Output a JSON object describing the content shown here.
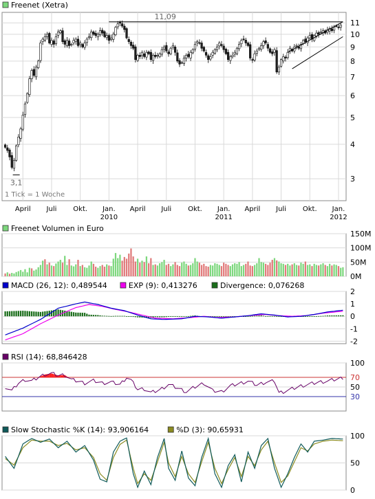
{
  "colors": {
    "background": "#ffffff",
    "plot_background": "#ffffff",
    "grid": "#d9d9d9",
    "border": "#888888",
    "candle_up": "#2e7d32",
    "candle_down": "#c62828",
    "volume_up": "#7dd77d",
    "volume_down": "#e07a7a",
    "macd": "#0000cc",
    "exp": "#ee00ee",
    "divergence": "#1b6e1b",
    "rsi": "#660066",
    "rsi_hi": "#cc3333",
    "rsi_lo": "#3333aa",
    "rsi_fill": "#ff2222",
    "stoch_k": "#0f5a5a",
    "stoch_d": "#8b8b20",
    "trendline": "#000000"
  },
  "chart_data": [
    {
      "id": "price",
      "type": "candlestick",
      "legend": [
        {
          "label": "Freenet (Xetra)",
          "color": "#7dd77d"
        }
      ],
      "y_scale": "log",
      "ylim": [
        2.5,
        12
      ],
      "yticks": [
        3,
        4,
        5,
        6,
        7,
        8,
        9,
        10,
        11
      ],
      "x_range": [
        0,
        153
      ],
      "note": "1 Tick = 1 Woche",
      "annotations": [
        {
          "text": "11,09",
          "x": 75,
          "value": 11.09
        },
        {
          "text": "3,1",
          "x": 5,
          "value": 3.1
        }
      ],
      "x_ticks": [
        {
          "label": "April",
          "x": 8
        },
        {
          "label": "Juli",
          "x": 21
        },
        {
          "label": "Okt.",
          "x": 34
        },
        {
          "label": "Jan.",
          "x": 47,
          "year": "2010"
        },
        {
          "label": "April",
          "x": 60
        },
        {
          "label": "Juli",
          "x": 73
        },
        {
          "label": "Okt.",
          "x": 86
        },
        {
          "label": "Jan.",
          "x": 99,
          "year": "2011"
        },
        {
          "label": "April",
          "x": 112
        },
        {
          "label": "Juli",
          "x": 125
        },
        {
          "label": "Okt.",
          "x": 138
        },
        {
          "label": "Jan.",
          "x": 151,
          "year": "2012"
        }
      ],
      "closes": [
        3.9,
        3.8,
        3.6,
        3.3,
        3.5,
        3.95,
        4.25,
        4.55,
        5.1,
        5.6,
        6.1,
        6.9,
        7.4,
        7.1,
        7.6,
        8.0,
        9.3,
        9.6,
        9.8,
        10.0,
        9.3,
        9.5,
        9.2,
        9.8,
        10.2,
        10.3,
        9.4,
        9.2,
        9.5,
        9.1,
        9.2,
        9.5,
        9.6,
        9.1,
        9.3,
        9.0,
        9.3,
        9.6,
        9.8,
        10.2,
        10.0,
        9.9,
        10.0,
        10.3,
        10.1,
        9.8,
        9.9,
        9.5,
        9.7,
        10.0,
        10.6,
        10.9,
        11.0,
        10.7,
        10.4,
        9.7,
        9.4,
        9.1,
        8.9,
        8.1,
        8.4,
        8.3,
        8.6,
        8.3,
        8.6,
        8.5,
        8.1,
        8.4,
        8.3,
        8.4,
        8.5,
        8.8,
        9.0,
        8.7,
        8.5,
        8.9,
        9.1,
        8.6,
        8.0,
        7.8,
        7.9,
        8.2,
        8.4,
        8.3,
        8.6,
        8.8,
        9.2,
        9.4,
        9.3,
        8.9,
        8.7,
        8.4,
        8.1,
        8.3,
        8.6,
        8.8,
        9.0,
        9.3,
        9.1,
        8.8,
        8.5,
        8.1,
        8.3,
        8.4,
        8.6,
        8.9,
        9.2,
        9.5,
        9.6,
        9.3,
        9.1,
        8.2,
        8.1,
        8.5,
        8.7,
        8.9,
        9.1,
        9.4,
        9.3,
        8.9,
        8.6,
        8.5,
        8.8,
        7.3,
        7.6,
        8.1,
        8.3,
        8.2,
        8.6,
        8.9,
        8.7,
        9.0,
        9.1,
        8.9,
        9.2,
        9.5,
        9.4,
        9.7,
        9.9,
        9.6,
        9.9,
        10.1,
        10.0,
        10.2,
        10.3,
        10.1,
        10.4,
        10.5,
        10.3,
        10.6,
        10.7,
        10.6,
        10.8
      ]
    },
    {
      "id": "volume",
      "type": "bar",
      "legend": [
        {
          "label": "Freenet Volumen in Euro",
          "color": "#7dd77d"
        }
      ],
      "ylim": [
        0,
        150
      ],
      "ytick_labels": [
        "0M",
        "50M",
        "100M",
        "150M"
      ],
      "yticks": [
        0,
        50,
        100,
        150
      ],
      "values": [
        10,
        14,
        9,
        12,
        10,
        15,
        18,
        22,
        16,
        25,
        14,
        30,
        28,
        20,
        24,
        32,
        40,
        55,
        60,
        42,
        48,
        38,
        36,
        45,
        52,
        58,
        48,
        72,
        40,
        60,
        38,
        35,
        42,
        58,
        36,
        40,
        32,
        30,
        38,
        52,
        44,
        34,
        30,
        36,
        40,
        34,
        42,
        38,
        36,
        62,
        82,
        64,
        76,
        55,
        68,
        62,
        80,
        98,
        70,
        52,
        62,
        48,
        55,
        50,
        70,
        46,
        64,
        40,
        42,
        38,
        46,
        50,
        58,
        40,
        44,
        36,
        42,
        50,
        40,
        36,
        48,
        52,
        44,
        38,
        40,
        46,
        64,
        52,
        48,
        40,
        44,
        36,
        34,
        40,
        38,
        46,
        44,
        40,
        36,
        48,
        44,
        40,
        36,
        42,
        46,
        44,
        50,
        36,
        40,
        44,
        52,
        38,
        36,
        40,
        46,
        64,
        50,
        48,
        44,
        40,
        48,
        58,
        64,
        56,
        52,
        46,
        44,
        40,
        44,
        38,
        42,
        46,
        40,
        38,
        48,
        44,
        52,
        40,
        42,
        36,
        44,
        40,
        38,
        42,
        46,
        40,
        36,
        44,
        38,
        42,
        40,
        36,
        30,
        32
      ],
      "down": [
        1,
        0,
        1,
        0,
        0,
        0,
        0,
        0,
        0,
        0,
        0,
        0,
        1,
        0,
        0,
        0,
        0,
        0,
        1,
        0,
        1,
        0,
        1,
        0,
        0,
        0,
        1,
        0,
        0,
        1,
        0,
        0,
        0,
        1,
        0,
        1,
        0,
        0,
        0,
        0,
        1,
        1,
        0,
        0,
        1,
        1,
        0,
        1,
        0,
        0,
        0,
        0,
        0,
        1,
        1,
        1,
        1,
        1,
        1,
        1,
        0,
        1,
        0,
        1,
        0,
        1,
        1,
        0,
        1,
        0,
        0,
        0,
        0,
        1,
        1,
        0,
        0,
        1,
        1,
        1,
        0,
        0,
        0,
        1,
        0,
        0,
        0,
        0,
        1,
        1,
        1,
        1,
        1,
        0,
        0,
        0,
        0,
        0,
        1,
        1,
        1,
        1,
        0,
        0,
        0,
        0,
        0,
        0,
        0,
        1,
        1,
        1,
        1,
        0,
        0,
        0,
        0,
        0,
        1,
        1,
        1,
        1,
        0,
        1,
        0,
        0,
        0,
        1,
        0,
        0,
        1,
        0,
        0,
        1,
        0,
        0,
        1,
        0,
        0,
        1,
        0,
        0,
        1,
        0,
        0,
        1,
        0,
        0,
        1,
        0,
        0,
        1,
        0,
        0
      ]
    },
    {
      "id": "macd",
      "type": "line",
      "legend": [
        {
          "label": "MACD (26, 12): 0,489544",
          "color": "#0000cc"
        },
        {
          "label": "EXP (9): 0,413276",
          "color": "#ee00ee"
        },
        {
          "label": "Divergence: 0,076268",
          "color": "#1b6e1b"
        }
      ],
      "ylim": [
        -2.2,
        2
      ],
      "yticks": [
        -2,
        -1,
        0,
        1,
        2
      ],
      "macd_keys": [
        [
          0,
          -1.5
        ],
        [
          8,
          -0.95
        ],
        [
          16,
          -0.25
        ],
        [
          24,
          0.65
        ],
        [
          32,
          1.0
        ],
        [
          36,
          1.15
        ],
        [
          42,
          0.95
        ],
        [
          48,
          0.65
        ],
        [
          54,
          0.45
        ],
        [
          60,
          0.1
        ],
        [
          66,
          -0.2
        ],
        [
          72,
          -0.25
        ],
        [
          80,
          -0.2
        ],
        [
          86,
          0.0
        ],
        [
          92,
          -0.05
        ],
        [
          98,
          -0.15
        ],
        [
          104,
          -0.05
        ],
        [
          110,
          0.05
        ],
        [
          116,
          0.2
        ],
        [
          122,
          0.1
        ],
        [
          128,
          -0.05
        ],
        [
          134,
          0.0
        ],
        [
          140,
          0.15
        ],
        [
          146,
          0.35
        ],
        [
          153,
          0.49
        ]
      ],
      "exp_keys": [
        [
          0,
          -1.9
        ],
        [
          8,
          -1.4
        ],
        [
          16,
          -0.6
        ],
        [
          24,
          0.1
        ],
        [
          32,
          0.7
        ],
        [
          38,
          0.95
        ],
        [
          44,
          0.8
        ],
        [
          50,
          0.55
        ],
        [
          56,
          0.35
        ],
        [
          62,
          0.1
        ],
        [
          68,
          -0.15
        ],
        [
          76,
          -0.2
        ],
        [
          84,
          -0.1
        ],
        [
          90,
          0.0
        ],
        [
          96,
          -0.1
        ],
        [
          104,
          -0.05
        ],
        [
          110,
          0.05
        ],
        [
          118,
          0.15
        ],
        [
          124,
          0.05
        ],
        [
          130,
          0.0
        ],
        [
          136,
          0.05
        ],
        [
          144,
          0.25
        ],
        [
          153,
          0.41
        ]
      ]
    },
    {
      "id": "rsi",
      "type": "line",
      "legend": [
        {
          "label": "RSI (14): 68,846428",
          "color": "#660066"
        }
      ],
      "ylim": [
        0,
        100
      ],
      "yticks": [
        30,
        50,
        70,
        100
      ],
      "hi": 70,
      "lo": 30,
      "keys": [
        [
          0,
          50
        ],
        [
          3,
          42
        ],
        [
          6,
          58
        ],
        [
          9,
          65
        ],
        [
          12,
          62
        ],
        [
          15,
          70
        ],
        [
          18,
          76
        ],
        [
          21,
          78
        ],
        [
          24,
          74
        ],
        [
          27,
          75
        ],
        [
          30,
          65
        ],
        [
          33,
          62
        ],
        [
          36,
          58
        ],
        [
          40,
          63
        ],
        [
          44,
          58
        ],
        [
          48,
          60
        ],
        [
          52,
          55
        ],
        [
          55,
          70
        ],
        [
          57,
          64
        ],
        [
          60,
          45
        ],
        [
          63,
          46
        ],
        [
          66,
          38
        ],
        [
          70,
          44
        ],
        [
          74,
          55
        ],
        [
          78,
          48
        ],
        [
          82,
          40
        ],
        [
          86,
          50
        ],
        [
          90,
          58
        ],
        [
          94,
          42
        ],
        [
          98,
          40
        ],
        [
          102,
          52
        ],
        [
          106,
          57
        ],
        [
          110,
          62
        ],
        [
          114,
          54
        ],
        [
          118,
          60
        ],
        [
          122,
          62
        ],
        [
          124,
          38
        ],
        [
          126,
          40
        ],
        [
          130,
          46
        ],
        [
          134,
          52
        ],
        [
          138,
          56
        ],
        [
          142,
          60
        ],
        [
          146,
          62
        ],
        [
          150,
          66
        ],
        [
          153,
          69
        ]
      ]
    },
    {
      "id": "stochastic",
      "type": "line",
      "legend": [
        {
          "label": "Slow Stochastic %K (14): 93,906164",
          "color": "#0f5a5a"
        },
        {
          "label": "%D (3): 90,65931",
          "color": "#8b8b20"
        }
      ],
      "ylim": [
        0,
        100
      ],
      "yticks": [
        0,
        50,
        100
      ],
      "k_keys": [
        [
          0,
          62
        ],
        [
          4,
          40
        ],
        [
          8,
          85
        ],
        [
          12,
          95
        ],
        [
          16,
          88
        ],
        [
          20,
          94
        ],
        [
          24,
          78
        ],
        [
          28,
          90
        ],
        [
          32,
          70
        ],
        [
          36,
          82
        ],
        [
          40,
          55
        ],
        [
          43,
          20
        ],
        [
          46,
          15
        ],
        [
          49,
          70
        ],
        [
          52,
          90
        ],
        [
          55,
          96
        ],
        [
          58,
          30
        ],
        [
          60,
          5
        ],
        [
          63,
          35
        ],
        [
          66,
          10
        ],
        [
          69,
          60
        ],
        [
          72,
          95
        ],
        [
          74,
          40
        ],
        [
          77,
          18
        ],
        [
          80,
          72
        ],
        [
          83,
          22
        ],
        [
          86,
          8
        ],
        [
          89,
          60
        ],
        [
          92,
          95
        ],
        [
          95,
          30
        ],
        [
          98,
          5
        ],
        [
          101,
          45
        ],
        [
          104,
          65
        ],
        [
          107,
          15
        ],
        [
          110,
          70
        ],
        [
          113,
          40
        ],
        [
          116,
          82
        ],
        [
          119,
          95
        ],
        [
          122,
          40
        ],
        [
          125,
          5
        ],
        [
          128,
          30
        ],
        [
          131,
          60
        ],
        [
          134,
          85
        ],
        [
          137,
          70
        ],
        [
          140,
          90
        ],
        [
          144,
          92
        ],
        [
          148,
          95
        ],
        [
          153,
          94
        ]
      ],
      "d_keys": [
        [
          0,
          58
        ],
        [
          4,
          46
        ],
        [
          8,
          78
        ],
        [
          12,
          92
        ],
        [
          16,
          90
        ],
        [
          20,
          90
        ],
        [
          24,
          82
        ],
        [
          28,
          86
        ],
        [
          32,
          74
        ],
        [
          36,
          78
        ],
        [
          40,
          60
        ],
        [
          43,
          30
        ],
        [
          46,
          18
        ],
        [
          49,
          60
        ],
        [
          52,
          84
        ],
        [
          55,
          92
        ],
        [
          58,
          40
        ],
        [
          60,
          12
        ],
        [
          63,
          30
        ],
        [
          66,
          18
        ],
        [
          69,
          52
        ],
        [
          72,
          88
        ],
        [
          74,
          50
        ],
        [
          77,
          25
        ],
        [
          80,
          62
        ],
        [
          83,
          30
        ],
        [
          86,
          14
        ],
        [
          89,
          52
        ],
        [
          92,
          88
        ],
        [
          95,
          40
        ],
        [
          98,
          12
        ],
        [
          101,
          38
        ],
        [
          104,
          60
        ],
        [
          107,
          25
        ],
        [
          110,
          62
        ],
        [
          113,
          45
        ],
        [
          116,
          74
        ],
        [
          119,
          90
        ],
        [
          122,
          50
        ],
        [
          125,
          14
        ],
        [
          128,
          26
        ],
        [
          131,
          52
        ],
        [
          134,
          78
        ],
        [
          137,
          72
        ],
        [
          140,
          85
        ],
        [
          144,
          90
        ],
        [
          148,
          92
        ],
        [
          153,
          91
        ]
      ]
    }
  ]
}
